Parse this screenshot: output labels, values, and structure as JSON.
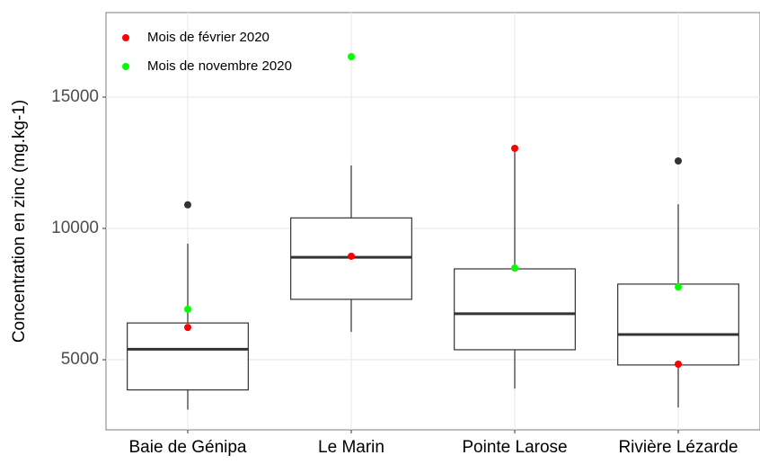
{
  "chart_data": {
    "type": "boxplot",
    "y_label": "Concentration en zinc (mg.kg-1)",
    "categories": [
      "Baie de Génipa",
      "Le Marin",
      "Pointe Larose",
      "Rivière Lézarde"
    ],
    "boxes": [
      {
        "low": 3100,
        "q1": 3850,
        "median": 5400,
        "q3": 6400,
        "high": 9420
      },
      {
        "low": 6060,
        "q1": 7300,
        "median": 8900,
        "q3": 10400,
        "high": 12400
      },
      {
        "low": 3900,
        "q1": 5380,
        "median": 6750,
        "q3": 8460,
        "high": 13050
      },
      {
        "low": 3180,
        "q1": 4800,
        "median": 5960,
        "q3": 7880,
        "high": 10920
      }
    ],
    "outliers": [
      [
        10900
      ],
      [],
      [],
      [
        12570
      ]
    ],
    "outlier_color": "#333333",
    "series": [
      {
        "name": "Mois de février 2020",
        "color": "#ff0000",
        "values": [
          6230,
          8940,
          13050,
          4830
        ]
      },
      {
        "name": "Mois de novembre 2020",
        "color": "#00ff00",
        "values": [
          6920,
          16540,
          8490,
          7770
        ]
      }
    ],
    "ylim": [
      2330,
      18220
    ],
    "yticks": [
      5000,
      10000,
      15000
    ],
    "grid": true,
    "legend": "top-left"
  }
}
